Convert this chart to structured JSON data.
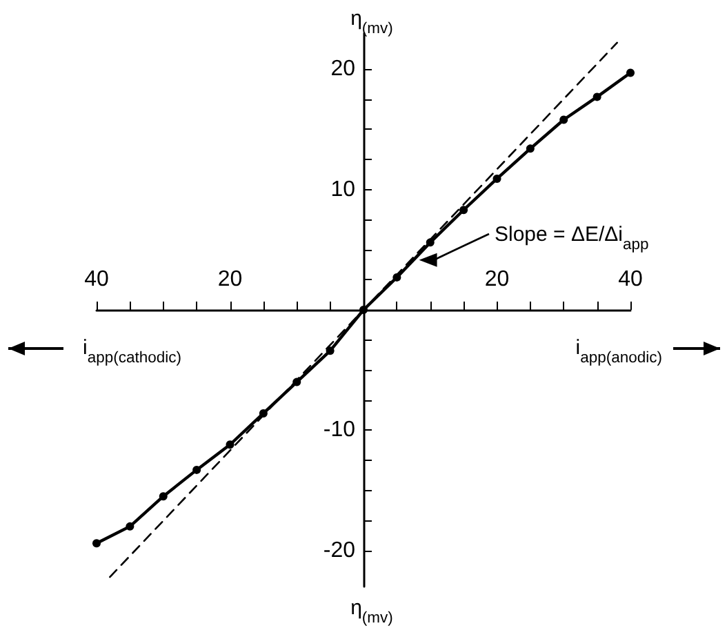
{
  "chart_data": {
    "type": "line",
    "xlabel": "i$_{app(anodic)}$",
    "ylabel": "η$_{(mv)}$",
    "annotations": [
      "i$_{app(cathodic)}$",
      "Slope = ΔE/Δi$_{app}$"
    ],
    "series": [
      {
        "color": "#000000",
        "marker": "circle",
        "line_style": "solid",
        "x": [
          -40,
          -35,
          -30,
          -25,
          -20,
          -15,
          -10,
          -5,
          0,
          5,
          10,
          15,
          20,
          25,
          30,
          35,
          40
        ],
        "values": [
          -19.4,
          -18.0,
          -15.5,
          -13.3,
          -11.2,
          -8.6,
          -6.0,
          -3.4,
          0,
          2.7,
          5.6,
          8.3,
          10.9,
          13.4,
          15.8,
          17.7,
          19.7
        ]
      },
      {
        "color": "#000000",
        "marker": "none",
        "line_style": "dashed",
        "x": [
          -38,
          38
        ],
        "values": [
          -22.2,
          22.2
        ]
      }
    ],
    "xlim": [
      -40,
      40
    ],
    "ylim": [
      -23,
      23
    ],
    "xticks": [
      {
        "value": -40,
        "label": "40"
      },
      {
        "value": -35,
        "label": null
      },
      {
        "value": -30,
        "label": null
      },
      {
        "value": -25,
        "label": null
      },
      {
        "value": -20,
        "label": "20"
      },
      {
        "value": -15,
        "label": null
      },
      {
        "value": -10,
        "label": null
      },
      {
        "value": -5,
        "label": null
      },
      {
        "value": 5,
        "label": null
      },
      {
        "value": 10,
        "label": null
      },
      {
        "value": 15,
        "label": null
      },
      20,
      {
        "value": 25,
        "label": null
      },
      {
        "value": 30,
        "label": null
      },
      {
        "value": 35,
        "label": null
      },
      40
    ],
    "yticks": [
      -20,
      {
        "value": -17.5,
        "label": null
      },
      {
        "value": -15,
        "label": null
      },
      {
        "value": -12.5,
        "label": null
      },
      -10,
      {
        "value": -7.5,
        "label": null
      },
      {
        "value": -5,
        "label": null
      },
      {
        "value": -2.5,
        "label": null
      },
      {
        "value": 2.5,
        "label": null
      },
      {
        "value": 5,
        "label": null
      },
      {
        "value": 7.5,
        "label": null
      },
      10,
      {
        "value": 12.5,
        "label": null
      },
      {
        "value": 15,
        "label": null
      },
      {
        "value": 17.5,
        "label": null
      },
      20
    ],
    "grid": false
  }
}
